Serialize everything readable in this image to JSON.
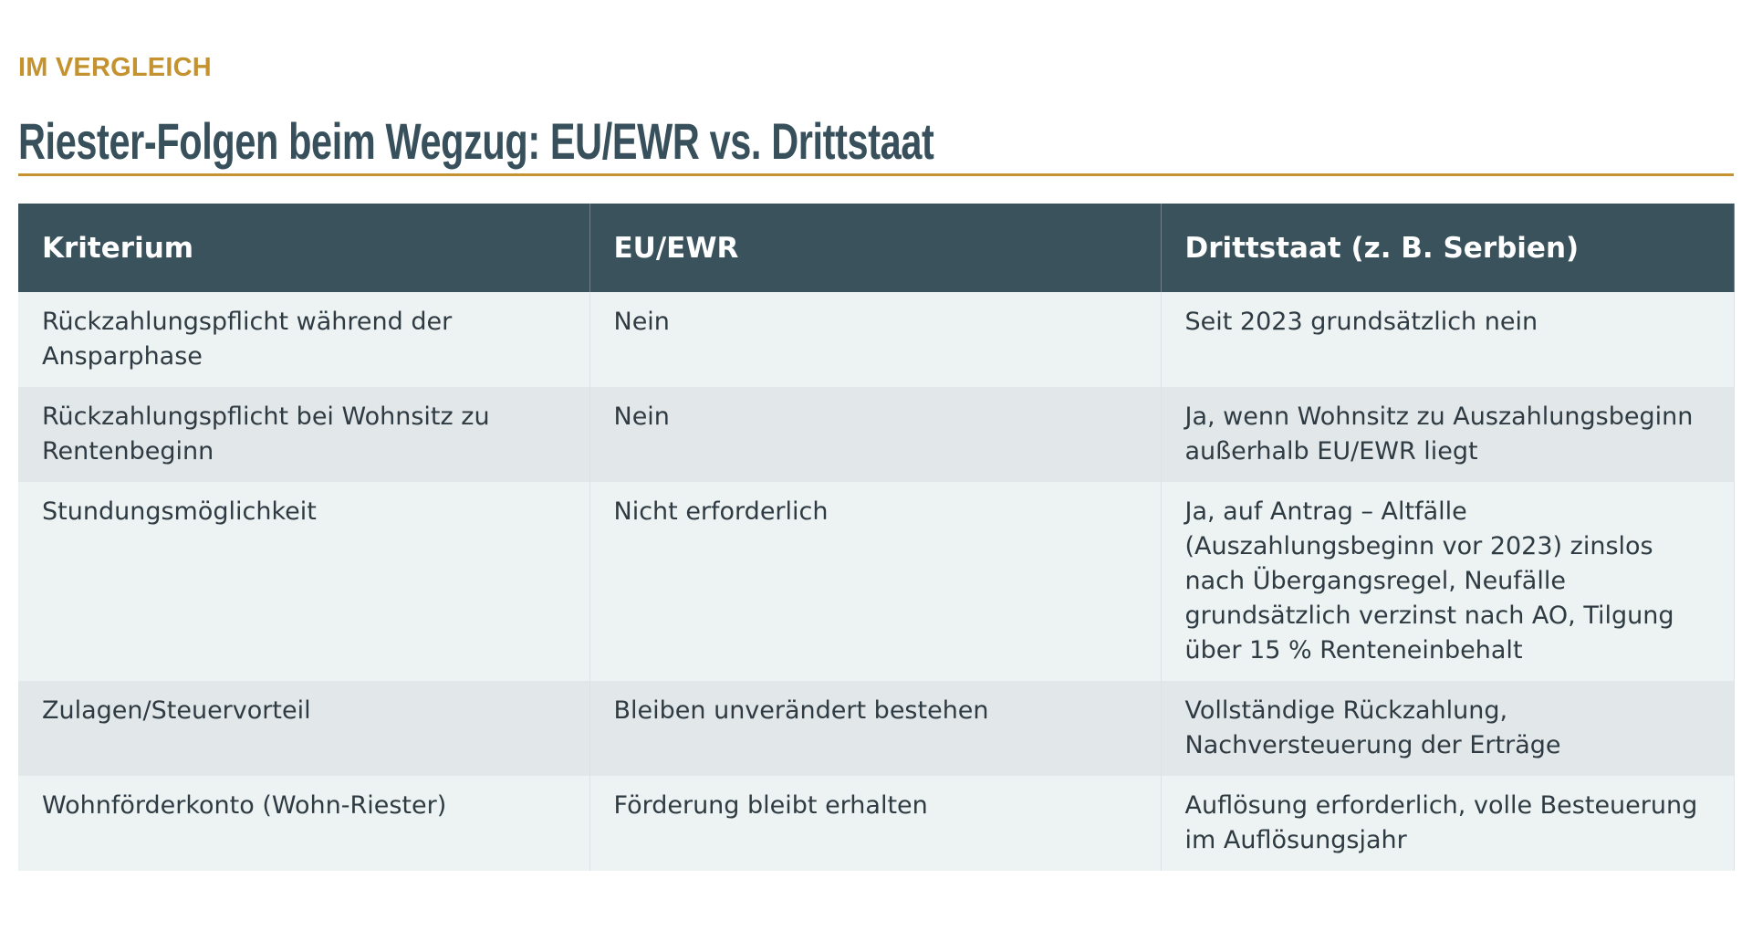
{
  "header": {
    "kicker": "IM VERGLEICH",
    "title": "Riester-Folgen beim Wegzug: EU/EWR vs. Drittstaat"
  },
  "table": {
    "headers": [
      "Kriterium",
      "EU/EWR",
      "Drittstaat (z. B. Serbien)"
    ],
    "rows": [
      [
        "Rückzahlungspflicht während der Ansparphase",
        "Nein",
        "Seit 2023 grundsätzlich nein"
      ],
      [
        "Rückzahlungspflicht bei Wohnsitz zu Rentenbeginn",
        "Nein",
        "Ja, wenn Wohnsitz zu Auszahlungsbeginn außerhalb EU/EWR liegt"
      ],
      [
        "Stundungsmöglichkeit",
        "Nicht erforderlich",
        "Ja, auf Antrag – Altfälle (Auszahlungsbeginn vor 2023) zinslos nach Übergangsregel, Neufälle grundsätzlich verzinst nach AO, Tilgung über 15 % Renteneinbehalt"
      ],
      [
        "Zulagen/Steuervorteil",
        "Bleiben unverändert bestehen",
        "Vollständige Rückzahlung, Nachversteuerung der Erträge"
      ],
      [
        "Wohnförderkonto (Wohn-Riester)",
        "Förderung bleibt erhalten",
        "Auflösung erforderlich, volle Besteuerung im Auflösungsjahr"
      ]
    ]
  }
}
